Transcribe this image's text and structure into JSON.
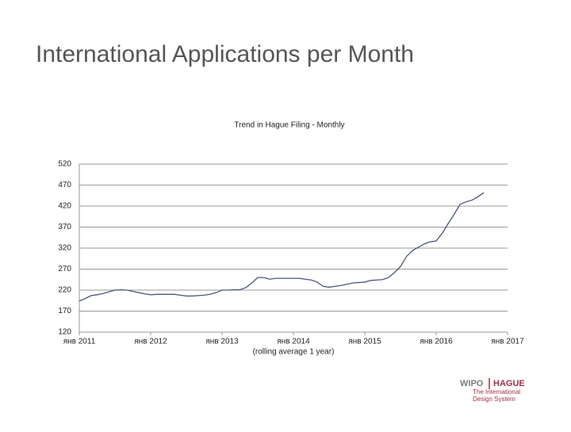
{
  "slide_title": "International Applications per Month",
  "chart_data": {
    "type": "line",
    "title": "Trend in Hague Filing - Monthly",
    "x_axis_label": "(rolling average 1 year)",
    "x": [
      "2011-01",
      "2011-02",
      "2011-03",
      "2011-04",
      "2011-05",
      "2011-06",
      "2011-07",
      "2011-08",
      "2011-09",
      "2011-10",
      "2011-11",
      "2011-12",
      "2012-01",
      "2012-02",
      "2012-03",
      "2012-04",
      "2012-05",
      "2012-06",
      "2012-07",
      "2012-08",
      "2012-09",
      "2012-10",
      "2012-11",
      "2012-12",
      "2013-01",
      "2013-02",
      "2013-03",
      "2013-04",
      "2013-05",
      "2013-06",
      "2013-07",
      "2013-08",
      "2013-09",
      "2013-10",
      "2013-11",
      "2013-12",
      "2014-01",
      "2014-02",
      "2014-03",
      "2014-04",
      "2014-05",
      "2014-06",
      "2014-07",
      "2014-08",
      "2014-09",
      "2014-10",
      "2014-11",
      "2014-12",
      "2015-01",
      "2015-02",
      "2015-03",
      "2015-04",
      "2015-05",
      "2015-06",
      "2015-07",
      "2015-08",
      "2015-09",
      "2015-10",
      "2015-11",
      "2015-12",
      "2016-01",
      "2016-02",
      "2016-03",
      "2016-04",
      "2016-05",
      "2016-06",
      "2016-07",
      "2016-08",
      "2016-09"
    ],
    "series": [
      {
        "name": "Hague Filing",
        "color": "#4a5878",
        "values": [
          194,
          200,
          207,
          209,
          212,
          216,
          220,
          221,
          220,
          217,
          214,
          211,
          209,
          210,
          210,
          210,
          210,
          208,
          206,
          206,
          207,
          208,
          210,
          214,
          220,
          220,
          221,
          221,
          226,
          237,
          250,
          250,
          246,
          248,
          248,
          248,
          248,
          248,
          246,
          244,
          239,
          229,
          227,
          229,
          231,
          234,
          237,
          238,
          239,
          243,
          244,
          245,
          250,
          262,
          276,
          300,
          314,
          322,
          330,
          335,
          337,
          355,
          378,
          400,
          424,
          430,
          434,
          442,
          452
        ]
      }
    ],
    "xlim": [
      "2011-01",
      "2017-01"
    ],
    "xticks": [
      {
        "value": "2011-01",
        "label": "янв 2011"
      },
      {
        "value": "2012-01",
        "label": "янв 2012"
      },
      {
        "value": "2013-01",
        "label": "янв 2013"
      },
      {
        "value": "2014-01",
        "label": "янв 2014"
      },
      {
        "value": "2015-01",
        "label": "янв 2015"
      },
      {
        "value": "2016-01",
        "label": "янв 2016"
      },
      {
        "value": "2017-01",
        "label": "янв 2017"
      }
    ],
    "ylim": [
      120,
      520
    ],
    "yticks": [
      120,
      170,
      220,
      270,
      320,
      370,
      420,
      470,
      520
    ],
    "grid": true
  },
  "logo": {
    "left": "WIPO",
    "right": "HAGUE",
    "line1": "The International",
    "line2": "Design System"
  }
}
